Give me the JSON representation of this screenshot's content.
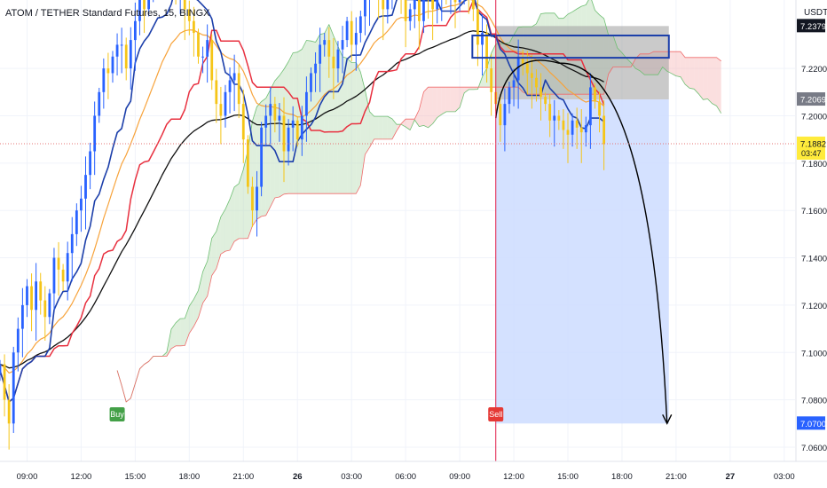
{
  "header": {
    "title": "ATOM / TETHER Standard Futures, 15, BINGX",
    "unit": "USDT"
  },
  "colors": {
    "up": "#2962ff",
    "down": "#f5c518",
    "kijun": "#e8303f",
    "tenkan": "#1c3faa",
    "ema_orange": "#f7a33b",
    "ema_black": "#111111",
    "cloud_red": "#f6b8b8",
    "cloud_green": "#b9dcb4",
    "sell_line": "#e11d48",
    "target_zone": "#cddcff",
    "stop_zone": "#9e9e9e",
    "buy_badge": "#43a047",
    "sell_badge": "#e53935"
  },
  "chart_data": {
    "type": "candlestick",
    "ylim": [
      7.054,
      7.2489
    ],
    "x_range_hours": [
      7.5,
      51.6
    ],
    "y_ticks": [
      "7.0600",
      "7.0800",
      "7.1000",
      "7.1200",
      "7.1400",
      "7.1600",
      "7.1800",
      "7.2000",
      "7.2200"
    ],
    "x_ticks": [
      {
        "t": 9,
        "label": "09:00"
      },
      {
        "t": 12,
        "label": "12:00"
      },
      {
        "t": 15,
        "label": "15:00"
      },
      {
        "t": 18,
        "label": "18:00"
      },
      {
        "t": 21,
        "label": "21:00"
      },
      {
        "t": 24,
        "label": "26"
      },
      {
        "t": 27,
        "label": "03:00"
      },
      {
        "t": 30,
        "label": "06:00"
      },
      {
        "t": 33,
        "label": "09:00"
      },
      {
        "t": 36,
        "label": "12:00"
      },
      {
        "t": 39,
        "label": "15:00"
      },
      {
        "t": 42,
        "label": "18:00"
      },
      {
        "t": 45,
        "label": "21:00"
      },
      {
        "t": 48,
        "label": "27"
      },
      {
        "t": 51,
        "label": "03:00"
      }
    ],
    "price_labels": [
      {
        "value": 7.2379,
        "text": "7.2379",
        "style": "dark"
      },
      {
        "value": 7.2069,
        "text": "7.2069",
        "style": "gray"
      },
      {
        "value": 7.1882,
        "text": "7.1882",
        "sub": "03:47",
        "style": "yellow"
      },
      {
        "value": 7.07,
        "text": "7.0700",
        "style": "blue"
      }
    ],
    "current_price": 7.1882,
    "start_time": 7.5,
    "interval_hours": 0.25,
    "closes": [
      7.095,
      7.08,
      7.07,
      7.1,
      7.11,
      7.12,
      7.128,
      7.118,
      7.13,
      7.122,
      7.115,
      7.125,
      7.14,
      7.135,
      7.13,
      7.142,
      7.15,
      7.16,
      7.165,
      7.175,
      7.185,
      7.2,
      7.21,
      7.22,
      7.218,
      7.225,
      7.23,
      7.23,
      7.22,
      7.232,
      7.24,
      7.25,
      7.245,
      7.255,
      7.26,
      7.265,
      7.27,
      7.262,
      7.268,
      7.252,
      7.258,
      7.245,
      7.24,
      7.235,
      7.225,
      7.225,
      7.232,
      7.215,
      7.205,
      7.2,
      7.21,
      7.215,
      7.218,
      7.205,
      7.19,
      7.17,
      7.16,
      7.17,
      7.195,
      7.2,
      7.205,
      7.198,
      7.2,
      7.185,
      7.195,
      7.198,
      7.19,
      7.2,
      7.21,
      7.218,
      7.222,
      7.23,
      7.232,
      7.225,
      7.22,
      7.228,
      7.232,
      7.24,
      7.23,
      7.235,
      7.242,
      7.25,
      7.255,
      7.26,
      7.25,
      7.245,
      7.255,
      7.26,
      7.265,
      7.25,
      7.24,
      7.245,
      7.25,
      7.24,
      7.255,
      7.25,
      7.245,
      7.25,
      7.252,
      7.25,
      7.252,
      7.248,
      7.255,
      7.26,
      7.255,
      7.245,
      7.23,
      7.235,
      7.22,
      7.21,
      7.205,
      7.196,
      7.205,
      7.212,
      7.215,
      7.225,
      7.222,
      7.218,
      7.216,
      7.212,
      7.208,
      7.205,
      7.198,
      7.2,
      7.198,
      7.194,
      7.192,
      7.198,
      7.195,
      7.193,
      7.196,
      7.212,
      7.206,
      7.2,
      7.188
    ],
    "indicators": [
      {
        "name": "kijun"
      },
      {
        "name": "tenkan"
      },
      {
        "name": "ema_orange"
      },
      {
        "name": "ema_black"
      }
    ],
    "markers": [
      {
        "label": "Buy",
        "t": 14.0
      },
      {
        "label": "Sell",
        "t": 35.0
      }
    ],
    "position": {
      "side": "short",
      "entry": 7.2069,
      "stop": 7.2379,
      "target": 7.07,
      "t_start": 35.0,
      "t_end": 44.6
    },
    "drawings": [
      {
        "type": "rectangle",
        "t0": 33.7,
        "t1": 44.6,
        "y0": 7.2245,
        "y1": 7.2339
      },
      {
        "type": "arrow",
        "from_t": 35.0,
        "from_y": 7.199,
        "peak_t": 38.5,
        "peak_y": 7.2222,
        "to_t": 44.5,
        "to_y": 7.07
      }
    ]
  }
}
